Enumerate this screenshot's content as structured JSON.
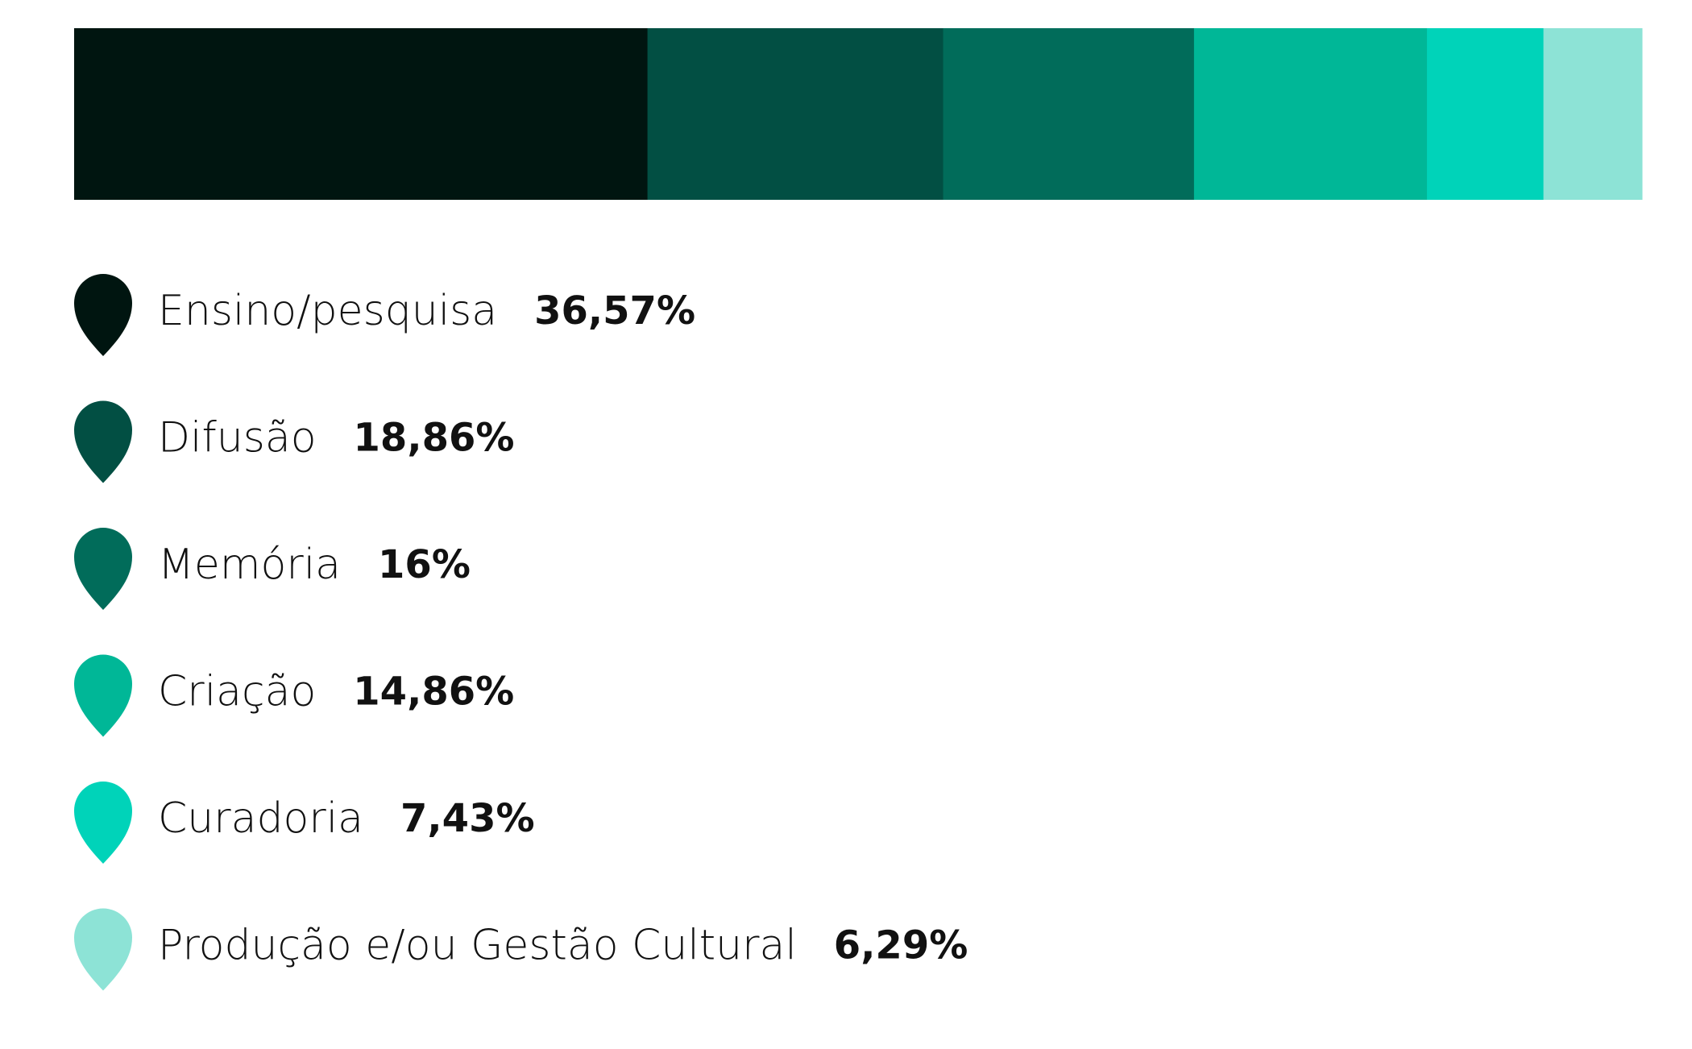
{
  "chart_data": {
    "type": "stacked-bar",
    "categories": [
      "Ensino/pesquisa",
      "Difusão",
      "Memória",
      "Criação",
      "Curadoria",
      "Produção e/ou Gestão Cultural"
    ],
    "values": [
      36.57,
      18.86,
      16,
      14.86,
      7.43,
      6.29
    ],
    "value_labels": [
      "36,57%",
      "18,86%",
      "16%",
      "14,86%",
      "7,43%",
      "6,29%"
    ],
    "colors": [
      "#001510",
      "#024f43",
      "#016c5a",
      "#00b797",
      "#00d3b9",
      "#8de3d6"
    ]
  }
}
